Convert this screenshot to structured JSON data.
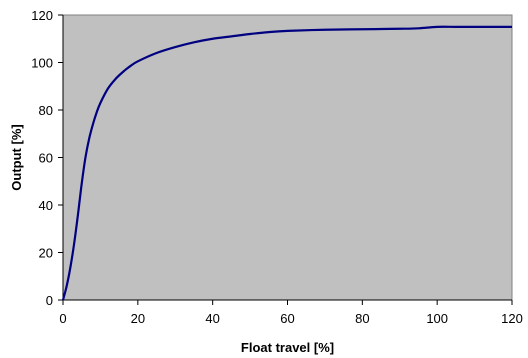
{
  "chart_data": {
    "type": "line",
    "title": "",
    "xlabel": "Float travel [%]",
    "ylabel": "Output [%]",
    "xlim": [
      0,
      120
    ],
    "ylim": [
      0,
      120
    ],
    "xticks": [
      "0",
      "20",
      "40",
      "60",
      "80",
      "100",
      "120"
    ],
    "yticks": [
      "0",
      "20",
      "40",
      "60",
      "80",
      "100",
      "120"
    ],
    "grid": false,
    "legend": "none",
    "plot_background": "#c0c0c0",
    "series": [
      {
        "color": "#000080",
        "x": [
          0,
          1,
          2,
          3,
          4,
          5,
          6,
          7,
          8,
          9,
          10,
          12,
          14,
          16,
          18,
          20,
          25,
          30,
          35,
          40,
          45,
          50,
          55,
          60,
          70,
          80,
          90,
          95,
          100,
          105,
          110,
          120
        ],
        "y": [
          0,
          6,
          14,
          24,
          36,
          49,
          60,
          68,
          74,
          79,
          83,
          89,
          93,
          96,
          98.5,
          100.5,
          104,
          106.5,
          108.5,
          110,
          111,
          112,
          112.8,
          113.3,
          113.8,
          114,
          114.2,
          114.4,
          115,
          115,
          115,
          115
        ]
      }
    ]
  }
}
